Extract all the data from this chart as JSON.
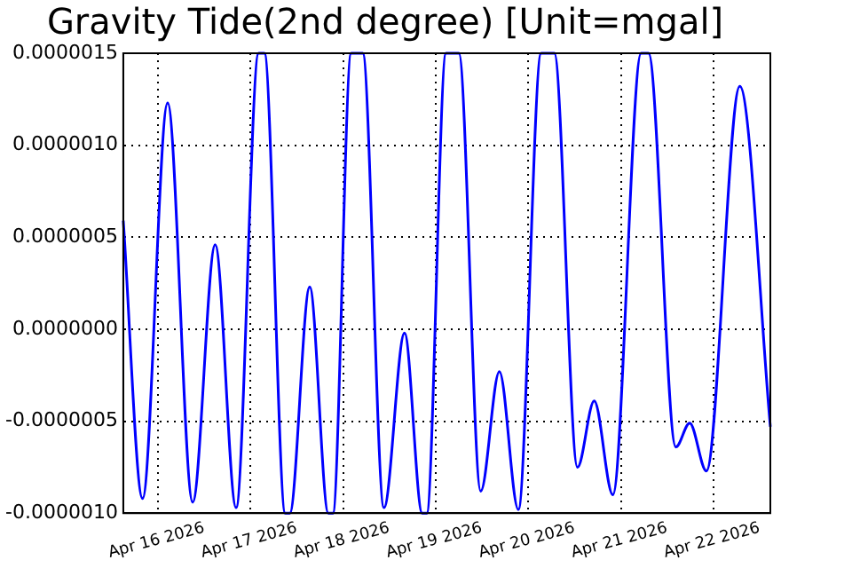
{
  "chart_data": {
    "type": "line",
    "title": "Gravity Tide(2nd degree) [Unit=mgal]",
    "x": [
      "2026-04-15T15:00",
      "2026-04-15T20:00",
      "2026-04-16T02:30",
      "2026-04-16T09:00",
      "2026-04-16T14:50",
      "2026-04-16T20:15",
      "2026-04-17T02:05",
      "2026-04-17T03:35",
      "2026-04-17T09:00",
      "2026-04-17T10:10",
      "2026-04-17T15:20",
      "2026-04-17T20:10",
      "2026-04-17T21:20",
      "2026-04-18T02:05",
      "2026-04-18T05:05",
      "2026-04-18T10:35",
      "2026-04-18T15:55",
      "2026-04-18T20:30",
      "2026-04-18T21:40",
      "2026-04-19T02:40",
      "2026-04-19T06:00",
      "2026-04-19T11:40",
      "2026-04-19T16:30",
      "2026-04-19T21:25",
      "2026-04-20T03:20",
      "2026-04-20T06:45",
      "2026-04-20T12:45",
      "2026-04-20T17:05",
      "2026-04-20T21:55",
      "2026-04-21T05:15",
      "2026-04-21T07:10",
      "2026-04-21T14:15",
      "2026-04-21T17:50",
      "2026-04-21T22:10",
      "2026-04-22T06:50",
      "2026-04-22T14:45"
    ],
    "series": [
      {
        "color": "#0000ff",
        "values": [
          5.9e-07,
          -9.2e-07,
          1.23e-06,
          -9.4e-07,
          4.6e-07,
          -9.7e-07,
          1.5e-06,
          1.5e-06,
          -1e-06,
          -1e-06,
          2.3e-07,
          -1e-06,
          -1e-06,
          1.5e-06,
          1.5e-06,
          -9.7e-07,
          -2e-08,
          -1e-06,
          -1e-06,
          1.5e-06,
          1.5e-06,
          -8.8e-07,
          -2.3e-07,
          -9.8e-07,
          1.5e-06,
          1.5e-06,
          -7.5e-07,
          -3.9e-07,
          -9e-07,
          1.5e-06,
          1.5e-06,
          -6.4e-07,
          -5.1e-07,
          -7.7e-07,
          1.32e-06,
          -5.3e-07
        ]
      }
    ],
    "xlim": [
      "2026-04-15T15:00",
      "2026-04-22T14:45"
    ],
    "xticks": [
      {
        "value": "2026-04-16",
        "label": "Apr 16 2026"
      },
      {
        "value": "2026-04-17",
        "label": "Apr 17 2026"
      },
      {
        "value": "2026-04-18",
        "label": "Apr 18 2026"
      },
      {
        "value": "2026-04-19",
        "label": "Apr 19 2026"
      },
      {
        "value": "2026-04-20",
        "label": "Apr 20 2026"
      },
      {
        "value": "2026-04-21",
        "label": "Apr 21 2026"
      },
      {
        "value": "2026-04-22",
        "label": "Apr 22 2026"
      }
    ],
    "ylim": [
      -1e-06,
      1.5e-06
    ],
    "yticks": [
      {
        "value": -1e-06,
        "label": "-0.0000010"
      },
      {
        "value": -5e-07,
        "label": "-0.0000005"
      },
      {
        "value": 0,
        "label": "0.0000000"
      },
      {
        "value": 5e-07,
        "label": "0.0000005"
      },
      {
        "value": 1e-06,
        "label": "0.0000010"
      },
      {
        "value": 1.5e-06,
        "label": "0.0000015"
      }
    ],
    "grid": true,
    "legend": false,
    "marker": "none",
    "line_style": "solid"
  }
}
